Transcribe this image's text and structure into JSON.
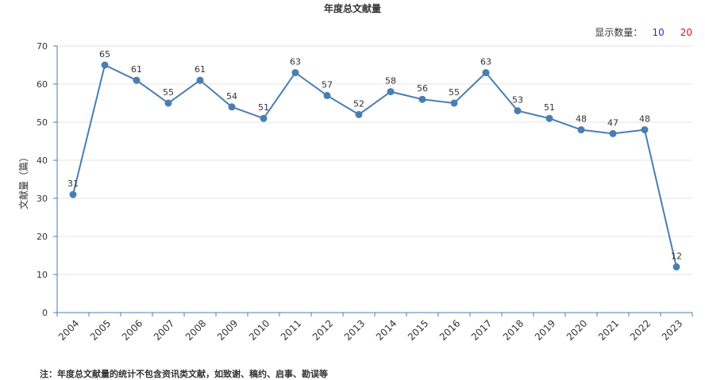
{
  "chart_data": {
    "type": "line",
    "title": "年度总文献量",
    "ylabel": "文献量（篇）",
    "xlabel": "",
    "categories": [
      "2004",
      "2005",
      "2006",
      "2007",
      "2008",
      "2009",
      "2010",
      "2011",
      "2012",
      "2013",
      "2014",
      "2015",
      "2016",
      "2017",
      "2018",
      "2019",
      "2020",
      "2021",
      "2022",
      "2023"
    ],
    "values": [
      31,
      65,
      61,
      55,
      61,
      54,
      51,
      63,
      57,
      52,
      58,
      56,
      55,
      63,
      53,
      51,
      48,
      47,
      48,
      12
    ],
    "ylim": [
      0,
      70
    ],
    "yticks": [
      0,
      10,
      20,
      30,
      40,
      50,
      60,
      70
    ],
    "grid": true,
    "series_color": "#4a7eb0"
  },
  "controls": {
    "display_label": "显示数量：",
    "option_10": "10",
    "option_20": "20"
  },
  "footnote": "注：年度总文献量的统计不包含资讯类文献，如致谢、稿约、启事、勘误等"
}
